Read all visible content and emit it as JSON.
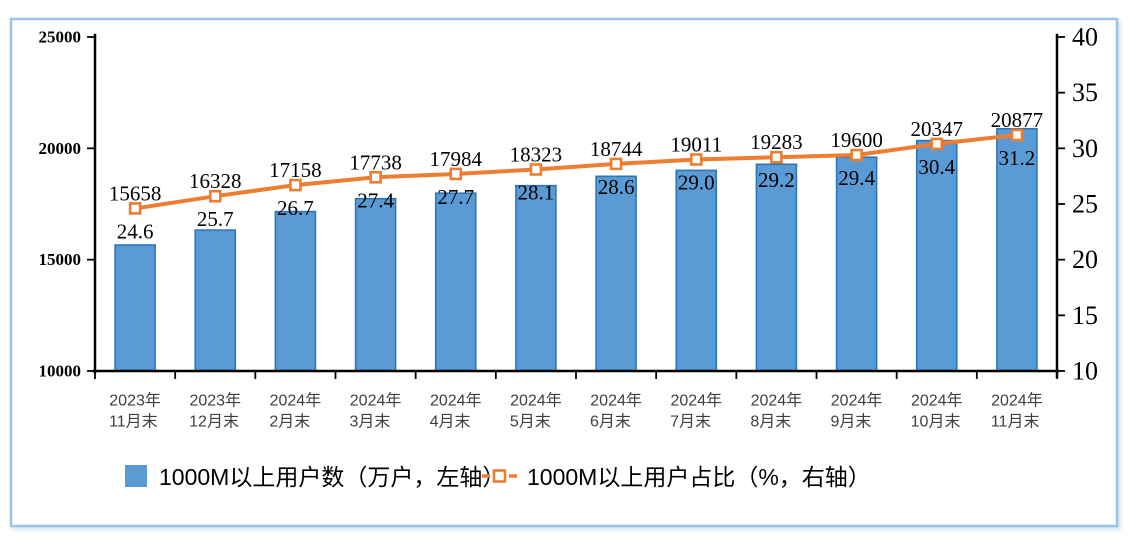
{
  "chart_data": {
    "type": "bar",
    "combo": "bar+line",
    "title": "",
    "categories": [
      [
        "2023年",
        "11月末"
      ],
      [
        "2023年",
        "12月末"
      ],
      [
        "2024年",
        "2月末"
      ],
      [
        "2024年",
        "3月末"
      ],
      [
        "2024年",
        "4月末"
      ],
      [
        "2024年",
        "5月末"
      ],
      [
        "2024年",
        "6月末"
      ],
      [
        "2024年",
        "7月末"
      ],
      [
        "2024年",
        "8月末"
      ],
      [
        "2024年",
        "9月末"
      ],
      [
        "2024年",
        "10月末"
      ],
      [
        "2024年",
        "11月末"
      ]
    ],
    "series": [
      {
        "name": "1000M以上用户数（万户，左轴）",
        "type": "bar",
        "axis": "left",
        "values": [
          15658,
          16328,
          17158,
          17738,
          17984,
          18323,
          18744,
          19011,
          19283,
          19600,
          20347,
          20877
        ],
        "labels": [
          "15658",
          "16328",
          "17158",
          "17738",
          "17984",
          "18323",
          "18744",
          "19011",
          "19283",
          "19600",
          "20347",
          "20877"
        ],
        "fill_color": "#5B9BD5",
        "border_color": "#2E75B6"
      },
      {
        "name": "1000M以上用户占比（%，右轴）",
        "type": "line",
        "axis": "right",
        "values": [
          24.6,
          25.7,
          26.7,
          27.4,
          27.7,
          28.1,
          28.6,
          29.0,
          29.2,
          29.4,
          30.4,
          31.2
        ],
        "labels": [
          "24.6",
          "25.7",
          "26.7",
          "27.4",
          "27.7",
          "28.1",
          "28.6",
          "29.0",
          "29.2",
          "29.4",
          "30.4",
          "31.2"
        ],
        "line_color": "#ED7D31",
        "marker": "square-white-fill"
      }
    ],
    "left_axis": {
      "min": 10000,
      "max": 25000,
      "step": 5000,
      "tick_labels": [
        "25000",
        "20000",
        "15000",
        "10000"
      ]
    },
    "right_axis": {
      "min": 10,
      "max": 40,
      "step": 5,
      "tick_labels": [
        "40",
        "35",
        "30",
        "25",
        "20",
        "15",
        "10"
      ]
    },
    "grid": false,
    "legend_position": "bottom"
  },
  "colors": {
    "bar_fill": "#5B9BD5",
    "bar_border": "#2E75B6",
    "line": "#ED7D31",
    "axis": "#000000",
    "tick_label": "#000000",
    "category_label": "#3f3f3f",
    "data_label": "#000000",
    "frame_border": "#9DC3E6",
    "background": "#ffffff"
  }
}
